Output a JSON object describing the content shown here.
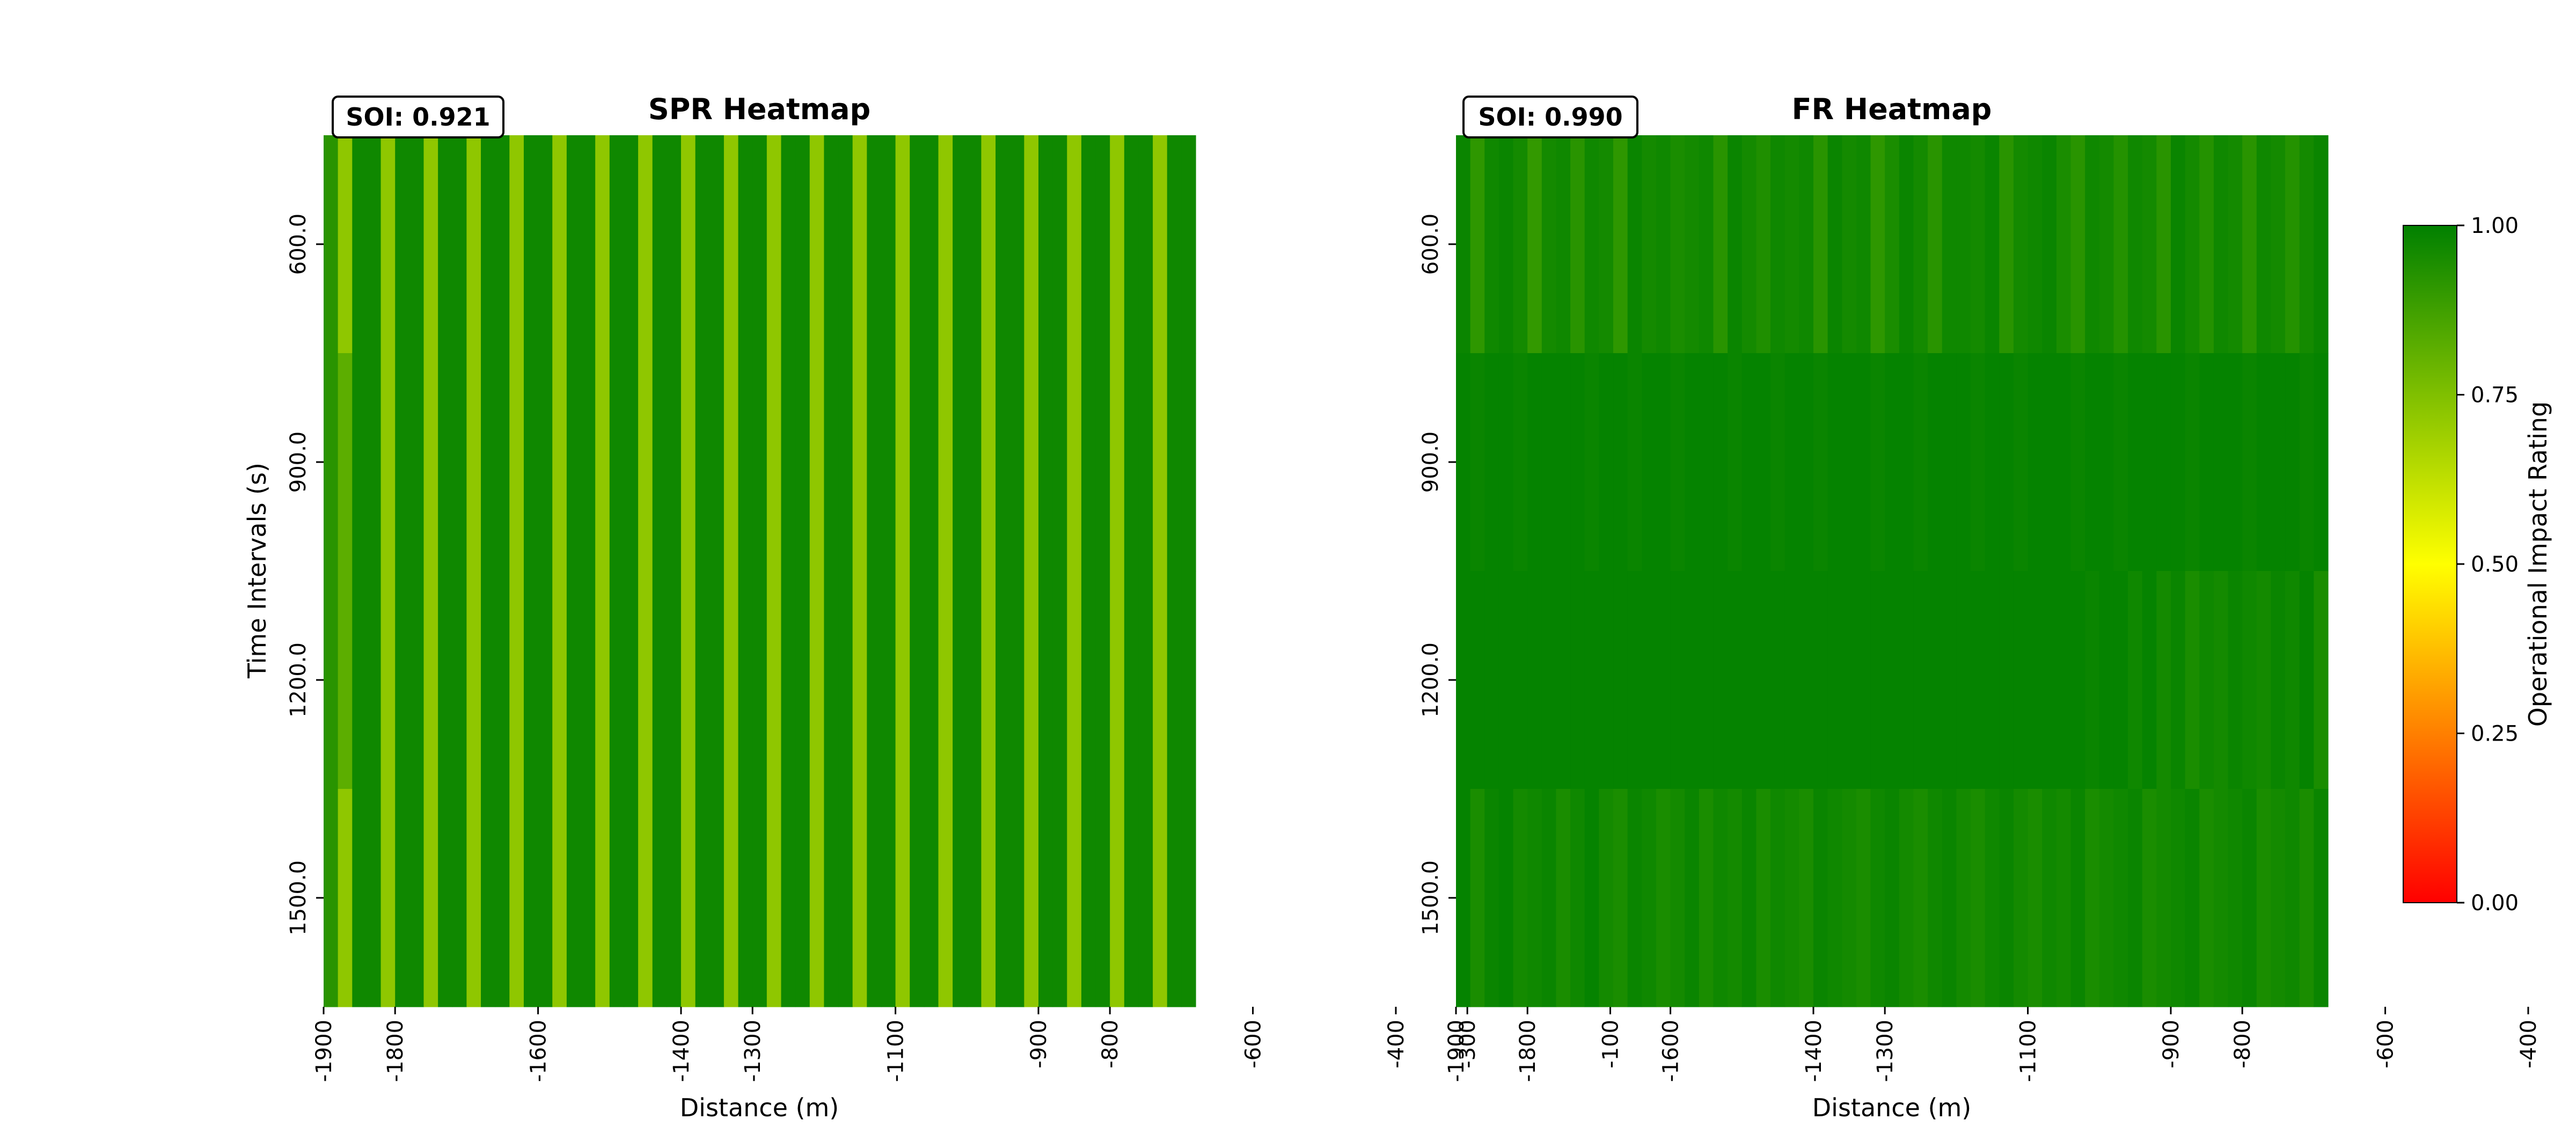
{
  "chart_data": [
    {
      "type": "heatmap",
      "title": "SPR Heatmap",
      "annotation": "SOI: 0.921",
      "xlabel": "Distance (m)",
      "ylabel": "Time Intervals (s)",
      "x_tick_labels": [
        "-1900",
        "-1800",
        "-1600",
        "-1400",
        "-1300",
        "-1100",
        "-900",
        "-800",
        "-600",
        "-400",
        "-300",
        "-100"
      ],
      "y_tick_labels": [
        "600.0",
        "900.0",
        "1200.0",
        "1500.0"
      ],
      "columns_x_start": -1900,
      "column_step": 20,
      "rows_y": [
        600,
        900,
        1200,
        1500
      ],
      "values": [
        [
          0.92,
          0.72,
          0.97,
          0.97,
          0.72,
          0.97,
          0.97,
          0.72,
          0.97,
          0.97,
          0.72,
          0.97,
          0.97,
          0.72,
          0.97,
          0.97,
          0.72,
          0.97,
          0.97,
          0.72,
          0.97,
          0.97,
          0.72,
          0.97,
          0.97,
          0.72,
          0.97,
          0.97,
          0.72,
          0.97,
          0.97,
          0.72,
          0.97,
          0.97,
          0.72,
          0.97,
          0.97,
          0.72,
          0.97,
          0.97,
          0.72,
          0.97,
          0.97,
          0.72,
          0.97,
          0.97,
          0.72,
          0.97,
          0.97,
          0.72,
          0.97,
          0.97,
          0.72,
          0.97,
          0.97,
          0.72,
          0.97,
          0.97,
          0.72,
          0.97,
          0.97
        ],
        [
          0.92,
          0.82,
          0.97,
          0.97,
          0.72,
          0.97,
          0.97,
          0.72,
          0.97,
          0.97,
          0.72,
          0.97,
          0.97,
          0.72,
          0.97,
          0.97,
          0.72,
          0.97,
          0.97,
          0.72,
          0.97,
          0.97,
          0.72,
          0.97,
          0.97,
          0.72,
          0.97,
          0.97,
          0.72,
          0.97,
          0.97,
          0.72,
          0.97,
          0.97,
          0.72,
          0.97,
          0.97,
          0.72,
          0.97,
          0.97,
          0.72,
          0.97,
          0.97,
          0.72,
          0.97,
          0.97,
          0.72,
          0.97,
          0.97,
          0.72,
          0.97,
          0.97,
          0.72,
          0.97,
          0.97,
          0.72,
          0.97,
          0.97,
          0.72,
          0.97,
          0.97
        ],
        [
          0.92,
          0.82,
          0.97,
          0.97,
          0.72,
          0.97,
          0.97,
          0.72,
          0.97,
          0.97,
          0.72,
          0.97,
          0.97,
          0.72,
          0.97,
          0.97,
          0.72,
          0.97,
          0.97,
          0.72,
          0.97,
          0.97,
          0.72,
          0.97,
          0.97,
          0.72,
          0.97,
          0.97,
          0.72,
          0.97,
          0.97,
          0.72,
          0.97,
          0.97,
          0.72,
          0.97,
          0.97,
          0.72,
          0.97,
          0.97,
          0.72,
          0.97,
          0.97,
          0.72,
          0.97,
          0.97,
          0.72,
          0.97,
          0.97,
          0.72,
          0.97,
          0.97,
          0.72,
          0.97,
          0.97,
          0.72,
          0.97,
          0.97,
          0.72,
          0.97,
          0.97
        ],
        [
          0.92,
          0.72,
          0.97,
          0.97,
          0.72,
          0.97,
          0.97,
          0.72,
          0.97,
          0.97,
          0.72,
          0.97,
          0.97,
          0.72,
          0.97,
          0.97,
          0.72,
          0.97,
          0.97,
          0.72,
          0.97,
          0.97,
          0.72,
          0.97,
          0.97,
          0.72,
          0.97,
          0.97,
          0.72,
          0.97,
          0.97,
          0.72,
          0.97,
          0.97,
          0.72,
          0.97,
          0.97,
          0.72,
          0.97,
          0.97,
          0.72,
          0.97,
          0.97,
          0.72,
          0.97,
          0.97,
          0.72,
          0.97,
          0.97,
          0.72,
          0.97,
          0.97,
          0.72,
          0.97,
          0.97,
          0.72,
          0.97,
          0.97,
          0.72,
          0.97,
          0.97
        ]
      ]
    },
    {
      "type": "heatmap",
      "title": "FR Heatmap",
      "annotation": "SOI: 0.990",
      "xlabel": "Distance (m)",
      "ylabel": "",
      "x_tick_labels": [
        "-1900",
        "-1800",
        "-1600",
        "-1400",
        "-1300",
        "-1100",
        "-900",
        "-800",
        "-600",
        "-400",
        "-300",
        "-100"
      ],
      "y_tick_labels": [
        "600.0",
        "900.0",
        "1200.0",
        "1500.0"
      ],
      "columns_x_start": -1900,
      "column_step": 20,
      "rows_y": [
        600,
        900,
        1200,
        1500
      ],
      "values": [
        [
          0.98,
          0.91,
          0.97,
          0.98,
          0.96,
          0.9,
          0.96,
          0.97,
          0.92,
          0.97,
          0.96,
          0.91,
          0.98,
          0.96,
          0.97,
          0.95,
          0.96,
          0.97,
          0.92,
          0.98,
          0.96,
          0.94,
          0.97,
          0.96,
          0.97,
          0.92,
          0.98,
          0.96,
          0.97,
          0.91,
          0.95,
          0.98,
          0.96,
          0.92,
          0.97,
          0.97,
          0.96,
          0.98,
          0.92,
          0.96,
          0.97,
          0.98,
          0.95,
          0.92,
          0.97,
          0.96,
          0.93,
          0.97,
          0.96,
          0.92,
          0.98,
          0.96,
          0.93,
          0.97,
          0.96,
          0.92,
          0.97,
          0.96,
          0.93,
          0.96,
          0.98
        ],
        [
          0.99,
          0.98,
          0.99,
          0.99,
          0.98,
          0.99,
          0.99,
          0.99,
          0.99,
          0.98,
          0.99,
          0.99,
          0.98,
          0.99,
          0.99,
          0.98,
          0.99,
          0.99,
          0.99,
          0.98,
          0.99,
          0.99,
          0.98,
          0.99,
          0.99,
          0.98,
          0.99,
          0.99,
          0.99,
          0.98,
          0.99,
          0.99,
          0.98,
          0.99,
          0.99,
          0.99,
          0.98,
          0.99,
          0.99,
          0.98,
          0.99,
          0.99,
          0.99,
          0.98,
          0.99,
          0.99,
          0.98,
          0.99,
          0.99,
          0.99,
          0.99,
          0.98,
          0.99,
          0.99,
          0.99,
          0.98,
          0.99,
          0.99,
          0.99,
          0.98,
          0.99
        ],
        [
          0.99,
          0.99,
          0.99,
          0.99,
          0.99,
          0.99,
          0.99,
          0.99,
          0.99,
          0.99,
          0.99,
          0.99,
          0.99,
          0.99,
          0.99,
          0.99,
          0.99,
          0.99,
          0.99,
          0.99,
          0.99,
          0.99,
          0.99,
          0.99,
          0.99,
          0.99,
          0.99,
          0.99,
          0.99,
          0.99,
          0.99,
          0.99,
          0.99,
          0.99,
          0.99,
          0.99,
          0.99,
          0.99,
          0.99,
          0.99,
          0.99,
          0.99,
          0.99,
          0.99,
          0.98,
          0.99,
          0.99,
          0.97,
          0.99,
          0.96,
          0.98,
          0.95,
          0.97,
          0.96,
          0.98,
          0.97,
          0.96,
          0.98,
          0.97,
          0.99,
          0.95
        ],
        [
          0.99,
          0.95,
          0.98,
          0.99,
          0.96,
          0.97,
          0.98,
          0.95,
          0.97,
          0.99,
          0.96,
          0.95,
          0.98,
          0.97,
          0.95,
          0.96,
          0.98,
          0.95,
          0.97,
          0.96,
          0.98,
          0.95,
          0.97,
          0.96,
          0.95,
          0.98,
          0.97,
          0.96,
          0.95,
          0.97,
          0.98,
          0.96,
          0.95,
          0.97,
          0.98,
          0.96,
          0.95,
          0.97,
          0.98,
          0.96,
          0.95,
          0.97,
          0.96,
          0.98,
          0.95,
          0.96,
          0.97,
          0.98,
          0.95,
          0.96,
          0.97,
          0.98,
          0.95,
          0.96,
          0.97,
          0.98,
          0.95,
          0.96,
          0.97,
          0.95,
          0.98
        ]
      ]
    }
  ],
  "colorbar": {
    "label": "Operational Impact Rating",
    "range": [
      0.0,
      1.0
    ],
    "tick_labels": [
      "0.00",
      "0.25",
      "0.50",
      "0.75",
      "1.00"
    ],
    "colors": [
      "#ff0000",
      "#ffff00",
      "#008000"
    ]
  }
}
